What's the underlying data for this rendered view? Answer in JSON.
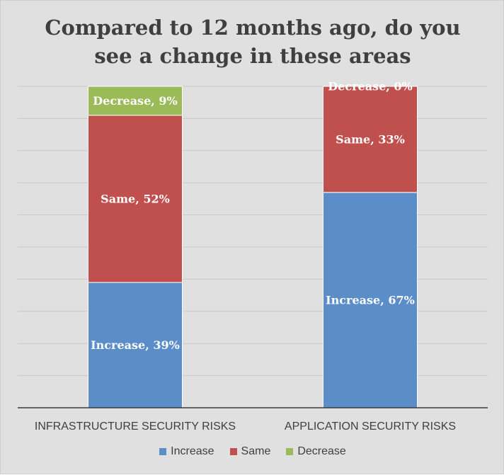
{
  "chart_data": {
    "type": "bar",
    "stacked": true,
    "title": "Compared to 12 months ago, do you\nsee a change in these areas",
    "categories": [
      "INFRASTRUCTURE SECURITY RISKS",
      "APPLICATION SECURITY RISKS"
    ],
    "series": [
      {
        "name": "Increase",
        "color": "#5b8dc9",
        "values": [
          39,
          67
        ],
        "labels": [
          "Increase, 39%",
          "Increase, 67%"
        ]
      },
      {
        "name": "Same",
        "color": "#c0504d",
        "values": [
          52,
          33
        ],
        "labels": [
          "Same, 52%",
          "Same, 33%"
        ]
      },
      {
        "name": "Decrease",
        "color": "#9bbb59",
        "values": [
          9,
          0
        ],
        "labels": [
          "Decrease, 9%",
          "Decrease, 0%"
        ]
      }
    ],
    "ylim": [
      0,
      100
    ],
    "grid": true,
    "legend": "bottom"
  }
}
